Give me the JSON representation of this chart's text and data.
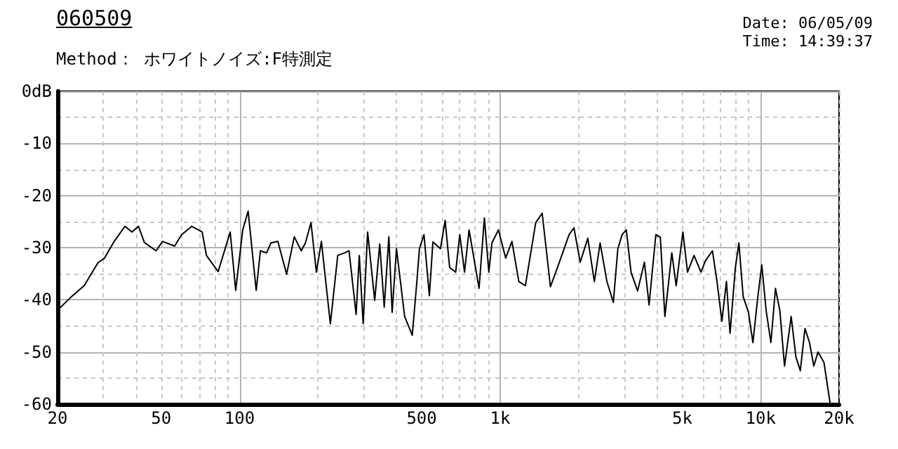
{
  "chart_data": {
    "type": "line",
    "title": "060509",
    "subtitle": "Method： ホワイトノイズ:F特測定",
    "annotations": [
      "Date: 06/05/09",
      "Time: 14:39:37"
    ],
    "x": [
      20,
      22.4,
      25.3,
      28.6,
      30.3,
      33,
      36.3,
      38.6,
      40.9,
      43.1,
      47.8,
      50.6,
      56.3,
      59.9,
      65.5,
      71.8,
      74.6,
      82.7,
      92,
      96.6,
      102.8,
      107.8,
      115.8,
      120.2,
      127,
      131.9,
      140.2,
      151.5,
      162.1,
      172.4,
      178.9,
      187.9,
      197.1,
      206,
      223,
      238,
      253,
      263,
      280,
      288,
      298,
      310,
      330,
      345,
      359,
      374,
      385,
      400,
      430,
      460,
      479,
      490,
      510,
      535,
      552,
      590,
      615,
      640,
      675,
      700,
      730,
      760,
      830,
      870,
      905,
      930,
      985,
      1050,
      1110,
      1180,
      1250,
      1370,
      1450,
      1560,
      1710,
      1840,
      1920,
      2030,
      2170,
      2300,
      2420,
      2570,
      2720,
      2830,
      2940,
      3050,
      3180,
      3370,
      3580,
      3730,
      3960,
      4120,
      4290,
      4560,
      4740,
      5030,
      5240,
      5550,
      5900,
      6140,
      6530,
      6800,
      7100,
      7390,
      7630,
      8000,
      8250,
      8570,
      8980,
      9340,
      9720,
      10100,
      10500,
      10950,
      11400,
      11850,
      12350,
      13100,
      13650,
      14200,
      14800,
      15400,
      16000,
      16600,
      17500,
      18500
    ],
    "values": [
      -42,
      -39.6,
      -37.3,
      -32.9,
      -32,
      -28.8,
      -25.9,
      -27,
      -25.9,
      -29,
      -30.6,
      -28.8,
      -29.7,
      -27.5,
      -25.9,
      -27,
      -31.5,
      -34.6,
      -27,
      -38.2,
      -26.6,
      -23,
      -38.2,
      -30.6,
      -31,
      -29.1,
      -28.8,
      -35.1,
      -27.9,
      -30.6,
      -29.1,
      -25.2,
      -34.7,
      -28.8,
      -44.6,
      -31.5,
      -31,
      -30.6,
      -42.8,
      -31.5,
      -44.6,
      -27,
      -40.1,
      -29.3,
      -41.4,
      -27.9,
      -42.4,
      -30.2,
      -43.2,
      -46.8,
      -36.5,
      -30.2,
      -27.5,
      -39.2,
      -28.9,
      -30.2,
      -24.8,
      -33.8,
      -34.7,
      -27.5,
      -34.7,
      -26.6,
      -37.8,
      -24.3,
      -34.7,
      -29.1,
      -26.6,
      -32,
      -28.8,
      -36.5,
      -37.3,
      -25.2,
      -23.4,
      -37.5,
      -32,
      -27.5,
      -26.2,
      -32.8,
      -28.2,
      -36.5,
      -29.1,
      -36.5,
      -40.5,
      -30.2,
      -27.5,
      -26.6,
      -34.7,
      -38.3,
      -32.8,
      -41,
      -27.5,
      -28,
      -43.2,
      -31,
      -37.3,
      -27,
      -34.7,
      -31.5,
      -34.7,
      -32.5,
      -30.6,
      -36.5,
      -44.1,
      -36.5,
      -46.4,
      -33.8,
      -29.1,
      -39.4,
      -42.4,
      -48.2,
      -40.1,
      -33.3,
      -42.1,
      -48.2,
      -37.8,
      -42.1,
      -52.7,
      -43.2,
      -50.9,
      -53.6,
      -45.5,
      -48.2,
      -52.7,
      -50,
      -52,
      -60
    ],
    "color": "#000000",
    "line_style": "solid",
    "grid": true,
    "xlim": [
      20,
      20000
    ],
    "log": "x",
    "xticks": [
      20,
      {
        "value": 30,
        "label": null
      },
      {
        "value": 40,
        "label": null
      },
      50,
      {
        "value": 60,
        "label": null
      },
      {
        "value": 70,
        "label": null
      },
      {
        "value": 80,
        "label": null
      },
      {
        "value": 90,
        "label": null
      },
      100,
      {
        "value": 200,
        "label": null
      },
      {
        "value": 300,
        "label": null
      },
      {
        "value": 400,
        "label": null
      },
      500,
      {
        "value": 600,
        "label": null
      },
      {
        "value": 700,
        "label": null
      },
      {
        "value": 800,
        "label": null
      },
      {
        "value": 900,
        "label": null
      },
      {
        "value": 1000,
        "label": "1k"
      },
      {
        "value": 2000,
        "label": null
      },
      {
        "value": 3000,
        "label": null
      },
      {
        "value": 4000,
        "label": null
      },
      {
        "value": 5000,
        "label": "5k"
      },
      {
        "value": 6000,
        "label": null
      },
      {
        "value": 7000,
        "label": null
      },
      {
        "value": 8000,
        "label": null
      },
      {
        "value": 9000,
        "label": null
      },
      {
        "value": 10000,
        "label": "10k"
      },
      {
        "value": 20000,
        "label": "20k"
      }
    ],
    "ylim": [
      -60,
      0
    ],
    "yticks": [
      {
        "value": 0,
        "label": "0dB"
      },
      {
        "value": -5,
        "label": null
      },
      -10,
      {
        "value": -15,
        "label": null
      },
      -20,
      {
        "value": -25,
        "label": null
      },
      -30,
      {
        "value": -35,
        "label": null
      },
      -40,
      {
        "value": -45,
        "label": null
      },
      -50,
      {
        "value": -55,
        "label": null
      },
      -60
    ]
  }
}
